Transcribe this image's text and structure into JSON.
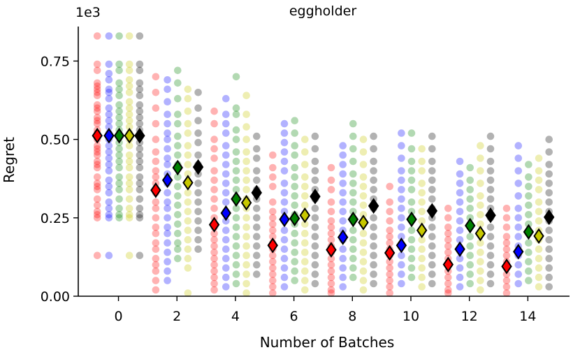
{
  "chart_data": {
    "type": "scatter",
    "title": "eggholder",
    "xlabel": "Number of Batches",
    "ylabel": "Regret",
    "y_scale_label": "1e3",
    "x_ticks": [
      0,
      2,
      4,
      6,
      8,
      10,
      12,
      14
    ],
    "y_ticks": [
      0.0,
      0.25,
      0.5,
      0.75
    ],
    "y_tick_labels": [
      "0.00",
      "0.25",
      "0.50",
      "0.75"
    ],
    "x_tick_labels": [
      "0",
      "2",
      "4",
      "6",
      "8",
      "10",
      "12",
      "14"
    ],
    "xlim": [
      -1.2,
      15.6
    ],
    "ylim": [
      0,
      0.86
    ],
    "grid": false,
    "series": [
      {
        "name": "red",
        "color": "#ff0000",
        "offset": -0.55,
        "mean": [
          0.512,
          0.338,
          0.228,
          0.162,
          0.148,
          0.138,
          0.101,
          0.095
        ],
        "points": [
          [
            0.83,
            0.74,
            0.72,
            0.68,
            0.67,
            0.66,
            0.65,
            0.64,
            0.61,
            0.6,
            0.59,
            0.57,
            0.56,
            0.55,
            0.53,
            0.52,
            0.5,
            0.48,
            0.47,
            0.46,
            0.45,
            0.43,
            0.42,
            0.41,
            0.38,
            0.36,
            0.35,
            0.34,
            0.31,
            0.29,
            0.27,
            0.26,
            0.25,
            0.13
          ],
          [
            0.7,
            0.65,
            0.6,
            0.55,
            0.5,
            0.46,
            0.43,
            0.4,
            0.38,
            0.36,
            0.33,
            0.3,
            0.28,
            0.25,
            0.22,
            0.2,
            0.17,
            0.15,
            0.12,
            0.1,
            0.08,
            0.05,
            0.02
          ],
          [
            0.59,
            0.55,
            0.5,
            0.47,
            0.44,
            0.4,
            0.37,
            0.34,
            0.31,
            0.28,
            0.25,
            0.22,
            0.2,
            0.18,
            0.16,
            0.14,
            0.12,
            0.1,
            0.08,
            0.06,
            0.04,
            0.02
          ],
          [
            0.45,
            0.41,
            0.38,
            0.35,
            0.3,
            0.27,
            0.25,
            0.23,
            0.21,
            0.19,
            0.17,
            0.15,
            0.13,
            0.11,
            0.09,
            0.07,
            0.05,
            0.03,
            0.01
          ],
          [
            0.41,
            0.37,
            0.34,
            0.3,
            0.27,
            0.24,
            0.22,
            0.2,
            0.18,
            0.16,
            0.14,
            0.12,
            0.1,
            0.08,
            0.06,
            0.04,
            0.02,
            0.01
          ],
          [
            0.35,
            0.3,
            0.27,
            0.24,
            0.21,
            0.19,
            0.17,
            0.15,
            0.13,
            0.11,
            0.09,
            0.07,
            0.05,
            0.03,
            0.01
          ],
          [
            0.28,
            0.25,
            0.22,
            0.2,
            0.18,
            0.16,
            0.14,
            0.12,
            0.1,
            0.08,
            0.06,
            0.04,
            0.02,
            0.01
          ],
          [
            0.28,
            0.25,
            0.22,
            0.19,
            0.17,
            0.15,
            0.13,
            0.11,
            0.09,
            0.07,
            0.05,
            0.03,
            0.01
          ]
        ]
      },
      {
        "name": "blue",
        "color": "#0000ff",
        "offset": -0.15,
        "mean": [
          0.512,
          0.37,
          0.265,
          0.245,
          0.188,
          0.162,
          0.15,
          0.142
        ],
        "points": [
          [
            0.83,
            0.74,
            0.71,
            0.69,
            0.66,
            0.65,
            0.63,
            0.6,
            0.58,
            0.56,
            0.54,
            0.52,
            0.5,
            0.48,
            0.46,
            0.44,
            0.42,
            0.4,
            0.37,
            0.35,
            0.33,
            0.3,
            0.28,
            0.26,
            0.25,
            0.13
          ],
          [
            0.69,
            0.66,
            0.62,
            0.58,
            0.55,
            0.52,
            0.5,
            0.47,
            0.44,
            0.42,
            0.39,
            0.36,
            0.33,
            0.3,
            0.28,
            0.25,
            0.22,
            0.2,
            0.17,
            0.14,
            0.11,
            0.08,
            0.05
          ],
          [
            0.63,
            0.58,
            0.55,
            0.52,
            0.48,
            0.45,
            0.42,
            0.39,
            0.36,
            0.33,
            0.3,
            0.27,
            0.24,
            0.21,
            0.18,
            0.15,
            0.12,
            0.09,
            0.06,
            0.03
          ],
          [
            0.55,
            0.52,
            0.49,
            0.46,
            0.43,
            0.4,
            0.36,
            0.33,
            0.3,
            0.27,
            0.24,
            0.21,
            0.18,
            0.15,
            0.12,
            0.09,
            0.06,
            0.03
          ],
          [
            0.48,
            0.45,
            0.42,
            0.39,
            0.36,
            0.33,
            0.3,
            0.27,
            0.24,
            0.21,
            0.18,
            0.15,
            0.12,
            0.09,
            0.06,
            0.03
          ],
          [
            0.52,
            0.48,
            0.44,
            0.4,
            0.37,
            0.34,
            0.31,
            0.28,
            0.25,
            0.22,
            0.19,
            0.16,
            0.13,
            0.1,
            0.07,
            0.04
          ],
          [
            0.43,
            0.39,
            0.36,
            0.33,
            0.3,
            0.27,
            0.24,
            0.21,
            0.18,
            0.15,
            0.12,
            0.09,
            0.06,
            0.03
          ],
          [
            0.48,
            0.44,
            0.4,
            0.36,
            0.32,
            0.28,
            0.25,
            0.22,
            0.19,
            0.16,
            0.13,
            0.1,
            0.07,
            0.04
          ]
        ]
      },
      {
        "name": "green",
        "color": "#008000",
        "offset": 0.2,
        "mean": [
          0.512,
          0.41,
          0.31,
          0.248,
          0.245,
          0.245,
          0.225,
          0.205
        ],
        "points": [
          [
            0.83,
            0.74,
            0.72,
            0.68,
            0.66,
            0.64,
            0.61,
            0.59,
            0.57,
            0.55,
            0.53,
            0.51,
            0.49,
            0.47,
            0.45,
            0.43,
            0.41,
            0.38,
            0.36,
            0.34,
            0.31,
            0.28,
            0.26,
            0.25
          ],
          [
            0.72,
            0.68,
            0.63,
            0.58,
            0.55,
            0.51,
            0.48,
            0.45,
            0.42,
            0.38,
            0.35,
            0.32,
            0.29,
            0.26,
            0.23,
            0.2,
            0.17,
            0.15,
            0.12
          ],
          [
            0.7,
            0.6,
            0.58,
            0.53,
            0.5,
            0.46,
            0.43,
            0.4,
            0.37,
            0.34,
            0.31,
            0.28,
            0.25,
            0.22,
            0.19,
            0.16,
            0.13,
            0.1,
            0.07,
            0.04
          ],
          [
            0.56,
            0.52,
            0.48,
            0.45,
            0.41,
            0.38,
            0.35,
            0.32,
            0.29,
            0.26,
            0.23,
            0.2,
            0.17,
            0.14,
            0.11,
            0.08,
            0.05
          ],
          [
            0.55,
            0.51,
            0.47,
            0.43,
            0.39,
            0.36,
            0.33,
            0.3,
            0.27,
            0.24,
            0.21,
            0.18,
            0.15,
            0.12,
            0.09,
            0.06
          ],
          [
            0.52,
            0.47,
            0.43,
            0.4,
            0.37,
            0.34,
            0.3,
            0.27,
            0.24,
            0.21,
            0.18,
            0.15,
            0.12,
            0.09,
            0.06
          ],
          [
            0.41,
            0.37,
            0.34,
            0.31,
            0.28,
            0.25,
            0.22,
            0.19,
            0.16,
            0.13,
            0.1,
            0.07,
            0.04
          ],
          [
            0.42,
            0.38,
            0.35,
            0.32,
            0.29,
            0.26,
            0.23,
            0.2,
            0.17,
            0.14,
            0.11,
            0.08,
            0.05
          ]
        ]
      },
      {
        "name": "yellow",
        "color": "#c8c800",
        "offset": 0.55,
        "mean": [
          0.512,
          0.362,
          0.298,
          0.258,
          0.235,
          0.21,
          0.2,
          0.192
        ],
        "points": [
          [
            0.83,
            0.74,
            0.72,
            0.69,
            0.67,
            0.65,
            0.62,
            0.6,
            0.58,
            0.56,
            0.54,
            0.52,
            0.5,
            0.48,
            0.45,
            0.43,
            0.41,
            0.38,
            0.36,
            0.34,
            0.31,
            0.28,
            0.26,
            0.25,
            0.13
          ],
          [
            0.66,
            0.63,
            0.59,
            0.55,
            0.52,
            0.48,
            0.45,
            0.42,
            0.39,
            0.36,
            0.33,
            0.3,
            0.27,
            0.24,
            0.21,
            0.18,
            0.15,
            0.12,
            0.09,
            0.01
          ],
          [
            0.64,
            0.58,
            0.54,
            0.5,
            0.46,
            0.43,
            0.4,
            0.37,
            0.34,
            0.31,
            0.28,
            0.25,
            0.22,
            0.19,
            0.16,
            0.13,
            0.1,
            0.07,
            0.04,
            0.01
          ],
          [
            0.5,
            0.46,
            0.42,
            0.38,
            0.35,
            0.32,
            0.29,
            0.26,
            0.23,
            0.2,
            0.17,
            0.14,
            0.11,
            0.08,
            0.05,
            0.02
          ],
          [
            0.5,
            0.46,
            0.42,
            0.38,
            0.35,
            0.32,
            0.29,
            0.26,
            0.23,
            0.2,
            0.17,
            0.14,
            0.11,
            0.08,
            0.05,
            0.02
          ],
          [
            0.47,
            0.43,
            0.4,
            0.36,
            0.33,
            0.3,
            0.27,
            0.24,
            0.21,
            0.18,
            0.15,
            0.12,
            0.09,
            0.06,
            0.03
          ],
          [
            0.48,
            0.44,
            0.4,
            0.36,
            0.32,
            0.29,
            0.26,
            0.23,
            0.2,
            0.17,
            0.14,
            0.11,
            0.08,
            0.05,
            0.02
          ],
          [
            0.44,
            0.4,
            0.37,
            0.34,
            0.3,
            0.27,
            0.24,
            0.21,
            0.18,
            0.15,
            0.12,
            0.09,
            0.06,
            0.03
          ]
        ]
      },
      {
        "name": "black",
        "color": "#000000",
        "offset": 0.9,
        "mean": [
          0.512,
          0.412,
          0.33,
          0.318,
          0.288,
          0.272,
          0.258,
          0.252
        ],
        "points": [
          [
            0.83,
            0.74,
            0.72,
            0.68,
            0.66,
            0.64,
            0.61,
            0.59,
            0.57,
            0.55,
            0.53,
            0.51,
            0.49,
            0.47,
            0.45,
            0.43,
            0.41,
            0.38,
            0.36,
            0.34,
            0.31,
            0.28,
            0.26,
            0.25,
            0.13
          ],
          [
            0.65,
            0.6,
            0.56,
            0.52,
            0.49,
            0.45,
            0.42,
            0.39,
            0.36,
            0.33,
            0.3,
            0.27,
            0.24,
            0.21,
            0.18,
            0.15
          ],
          [
            0.51,
            0.47,
            0.44,
            0.4,
            0.37,
            0.34,
            0.31,
            0.28,
            0.25,
            0.22,
            0.19,
            0.16,
            0.13,
            0.1,
            0.07
          ],
          [
            0.51,
            0.47,
            0.43,
            0.4,
            0.37,
            0.34,
            0.31,
            0.28,
            0.25,
            0.22,
            0.19,
            0.16,
            0.13,
            0.1,
            0.07,
            0.04
          ],
          [
            0.51,
            0.47,
            0.43,
            0.4,
            0.37,
            0.34,
            0.31,
            0.28,
            0.25,
            0.22,
            0.19,
            0.16,
            0.13,
            0.1,
            0.07,
            0.04
          ],
          [
            0.51,
            0.47,
            0.43,
            0.4,
            0.37,
            0.34,
            0.31,
            0.28,
            0.25,
            0.22,
            0.19,
            0.16,
            0.13,
            0.1,
            0.07,
            0.04
          ],
          [
            0.51,
            0.47,
            0.43,
            0.4,
            0.37,
            0.34,
            0.31,
            0.28,
            0.25,
            0.22,
            0.19,
            0.16,
            0.13,
            0.1,
            0.07,
            0.04
          ],
          [
            0.5,
            0.46,
            0.42,
            0.39,
            0.36,
            0.33,
            0.3,
            0.27,
            0.24,
            0.21,
            0.18,
            0.15,
            0.12,
            0.09,
            0.06,
            0.03
          ]
        ]
      }
    ]
  }
}
